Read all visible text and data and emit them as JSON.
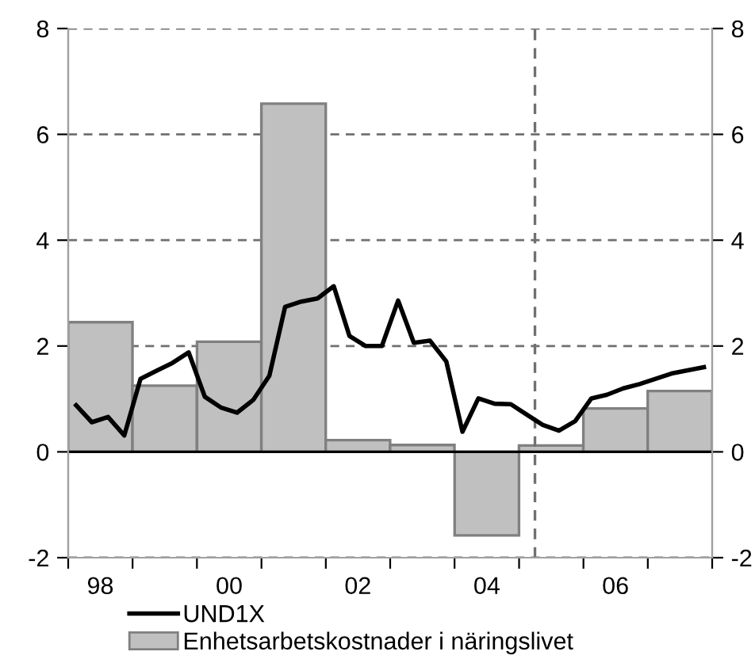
{
  "chart_data": {
    "type": "bar",
    "series": [
      {
        "name": "UND1X",
        "type": "line",
        "color": "#000000",
        "x": [
          "1998-02-15",
          "1998-05-15",
          "1998-08-15",
          "1998-11-15",
          "1999-02-15",
          "1999-05-15",
          "1999-08-15",
          "1999-11-15",
          "2000-02-15",
          "2000-05-15",
          "2000-08-15",
          "2000-11-15",
          "2001-02-15",
          "2001-05-15",
          "2001-08-15",
          "2001-11-15",
          "2002-02-15",
          "2002-05-15",
          "2002-08-15",
          "2002-11-15",
          "2003-02-15",
          "2003-05-15",
          "2003-08-15",
          "2003-11-15",
          "2004-02-15",
          "2004-05-15",
          "2004-08-15",
          "2004-11-15",
          "2005-02-15",
          "2005-05-15",
          "2005-08-15",
          "2005-11-15",
          "2006-02-15",
          "2006-05-15",
          "2006-08-15",
          "2006-11-15",
          "2007-02-15",
          "2007-05-15",
          "2007-08-15",
          "2007-11-15"
        ],
        "values": [
          0.88,
          0.56,
          0.66,
          0.31,
          1.38,
          1.53,
          1.68,
          1.88,
          1.04,
          0.84,
          0.74,
          0.98,
          1.44,
          2.74,
          2.84,
          2.9,
          3.13,
          2.19,
          2.0,
          2.0,
          2.86,
          2.06,
          2.1,
          1.71,
          0.38,
          1.01,
          0.91,
          0.9,
          0.7,
          0.51,
          0.4,
          0.58,
          1.01,
          1.08,
          1.2,
          1.28,
          1.38,
          1.48,
          1.54,
          1.6
        ]
      },
      {
        "name": "Enhetsarbetskostnader i näringslivet",
        "color": "#c0c0c0",
        "x": [
          "1998-07-02",
          "1999-07-02",
          "2000-07-02",
          "2001-07-02",
          "2002-07-02",
          "2003-07-02",
          "2004-07-02",
          "2005-07-02",
          "2006-07-02",
          "2007-07-02"
        ],
        "values": [
          2.45,
          1.25,
          2.08,
          6.58,
          0.22,
          0.13,
          -1.58,
          0.12,
          0.82,
          1.15
        ]
      }
    ],
    "xlim": [
      "1998-01-01",
      "2008-01-01"
    ],
    "xticks": [
      {
        "value": "1998-01-01",
        "label": null
      },
      {
        "value": "1999-01-01",
        "label": null
      },
      {
        "value": "2000-01-01",
        "label": null
      },
      {
        "value": "2001-01-01",
        "label": null
      },
      {
        "value": "2002-01-01",
        "label": null
      },
      {
        "value": "2003-01-01",
        "label": null
      },
      {
        "value": "2004-01-01",
        "label": null
      },
      {
        "value": "2005-01-01",
        "label": null
      },
      {
        "value": "2006-01-01",
        "label": null
      },
      {
        "value": "2007-01-01",
        "label": null
      },
      {
        "value": "2008-01-01",
        "label": null
      },
      {
        "value": "1998-07-02",
        "label": "98"
      },
      {
        "value": "2000-07-02",
        "label": "00"
      },
      {
        "value": "2002-07-02",
        "label": "02"
      },
      {
        "value": "2004-07-02",
        "label": "04"
      },
      {
        "value": "2006-07-02",
        "label": "06"
      }
    ],
    "ylim": [
      -2,
      8
    ],
    "yticks": [
      -2,
      0,
      2,
      4,
      6,
      8
    ],
    "y2lim": [
      -2,
      8
    ],
    "y2ticks": [
      -2,
      0,
      2,
      4,
      6,
      8
    ],
    "ref_lines": [
      {
        "axis": "x",
        "value": "2005-04-01",
        "line_style": "dashed",
        "color": "#707070"
      },
      {
        "axis": "y",
        "value": 0,
        "line_style": "solid",
        "color": "#000000"
      }
    ],
    "grid": "y",
    "legend": "bottom left",
    "line_style": "solid",
    "marker": "none"
  }
}
